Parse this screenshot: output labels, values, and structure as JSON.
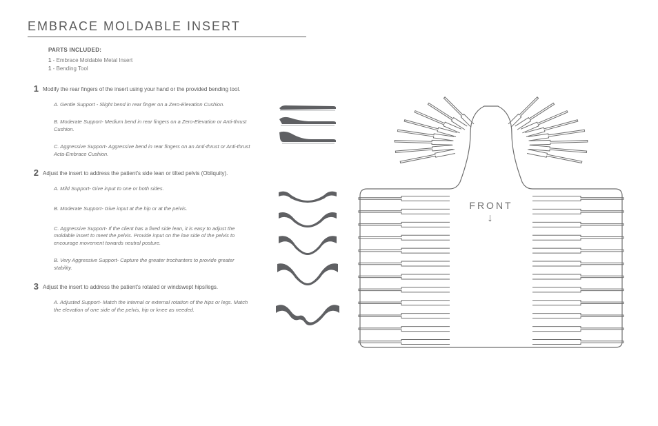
{
  "title": "EMBRACE MOLDABLE INSERT",
  "parts": {
    "heading": "PARTS INCLUDED:",
    "items": [
      {
        "qty": "1",
        "name": "Embrace Moldable Metal Insert"
      },
      {
        "qty": "1",
        "name": "Bending Tool"
      }
    ]
  },
  "steps": [
    {
      "num": "1",
      "text": "Modify the rear fingers of the insert using your hand or the provided bending tool.",
      "sub": [
        "A. Gentle Support - Slight bend in rear finger on a Zero-Elevation Cushion.",
        "B. Moderate Support- Medium bend in rear fingers on a Zero-Elevation or Anti-thrust Cushion.",
        "C. Aggressive Support- Aggressive bend in rear fingers on an Anti-thrust or Anti-thrust Acta-Embrace Cushion."
      ]
    },
    {
      "num": "2",
      "text": "Adjust the insert to address the patient's side lean or tilted pelvis (Obliquity).",
      "sub": [
        "A. Mild Support- Give input to one or both sides.",
        "B. Moderate Support- Give input at the hip or at the pelvis.",
        "C. Aggressive Support- If the client has a fixed side lean, it is easy to adjust the moldable insert to meet the pelvis. Provide input on the low side of the pelvis to encourage movement towards neutral posture.",
        "B. Very Aggressive Support- Capture the greater trochanters to provide greater stability."
      ]
    },
    {
      "num": "3",
      "text": "Adjust the insert to address the patient's rotated or windswept hips/legs.",
      "sub": [
        "A. Adjusted Support- Match the internal or external rotation of the hips or legs.  Match the elevation of one side of the pelvis, hip or knee as needed."
      ]
    }
  ],
  "diagram": {
    "front_label": "FRONT",
    "arrow": "↓",
    "stroke": "#6e6e6e",
    "fill": "none"
  },
  "shape_fill": "#5f6063",
  "shapes1": {
    "w": 86,
    "heights": [
      12,
      14,
      18
    ]
  },
  "shapes2": {
    "w": 92,
    "heights": [
      20,
      22,
      26,
      30
    ]
  }
}
